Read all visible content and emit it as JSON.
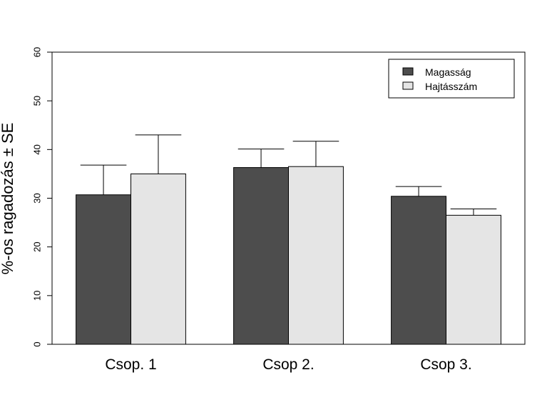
{
  "chart_data": {
    "type": "bar",
    "categories": [
      "Csop. 1",
      "Csop 2.",
      "Csop 3."
    ],
    "series": [
      {
        "name": "Magasság",
        "color": "#4d4d4d",
        "values": [
          30.7,
          36.3,
          30.4
        ],
        "se": [
          6.1,
          3.8,
          2.0
        ]
      },
      {
        "name": "Hajtásszám",
        "color": "#e5e5e5",
        "values": [
          35.0,
          36.5,
          26.5
        ],
        "se": [
          8.0,
          5.2,
          1.3
        ]
      }
    ],
    "xlabel": "",
    "ylabel": "%-os ragadozás ± SE",
    "ylim": [
      0,
      60
    ],
    "yticks": [
      0,
      10,
      20,
      30,
      40,
      50,
      60
    ],
    "grid": false,
    "legend_position": "top-right"
  }
}
